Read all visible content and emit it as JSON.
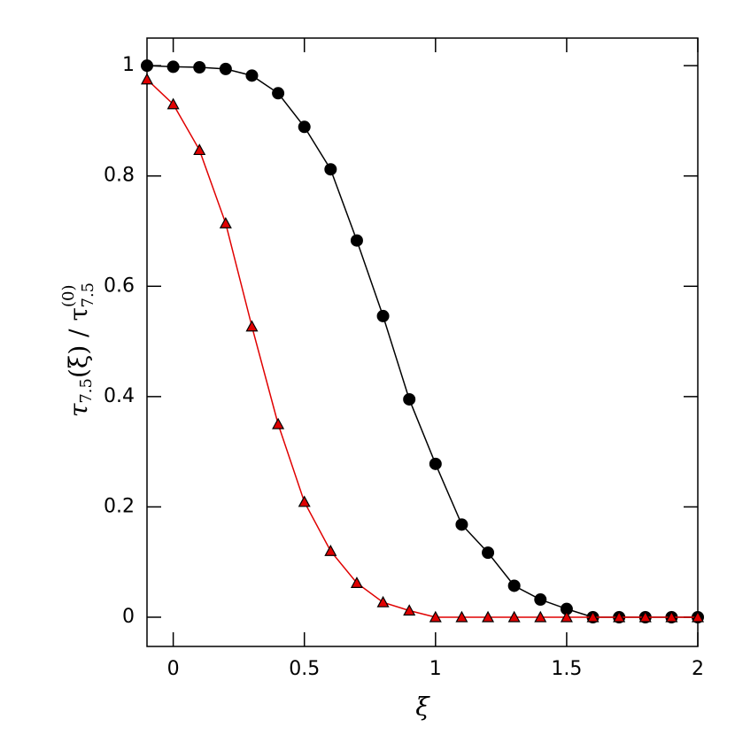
{
  "chart_data": {
    "type": "line",
    "xlabel": "ξ",
    "ylabel": [
      "τ",
      "7.5",
      "(ξ) / τ",
      "(0)",
      "7.5"
    ],
    "x": [
      -0.1,
      0,
      0.1,
      0.2,
      0.3,
      0.4,
      0.5,
      0.6,
      0.7,
      0.8,
      0.9,
      1.0,
      1.1,
      1.2,
      1.3,
      1.4,
      1.5,
      1.6,
      1.7,
      1.8,
      1.9,
      2.0
    ],
    "series": [
      {
        "color": "#000000",
        "marker": "circle",
        "values": [
          1.0,
          0.998,
          0.997,
          0.994,
          0.982,
          0.95,
          0.889,
          0.812,
          0.683,
          0.546,
          0.395,
          0.278,
          0.168,
          0.117,
          0.057,
          0.032,
          0.015,
          0,
          0,
          0,
          0,
          0
        ]
      },
      {
        "color": "#e00000",
        "marker": "triangle",
        "values": [
          0.975,
          0.93,
          0.847,
          0.714,
          0.527,
          0.35,
          0.209,
          0.12,
          0.062,
          0.027,
          0.012,
          0,
          0,
          0,
          0,
          0,
          0,
          0,
          0,
          0,
          0,
          0
        ]
      }
    ],
    "xlim": [
      -0.1,
      2.0
    ],
    "ylim": [
      -0.053,
      1.05
    ],
    "xticks": [
      0,
      0.5,
      1,
      1.5,
      2
    ],
    "yticks": [
      0,
      0.2,
      0.4,
      0.6,
      0.8,
      1
    ]
  }
}
